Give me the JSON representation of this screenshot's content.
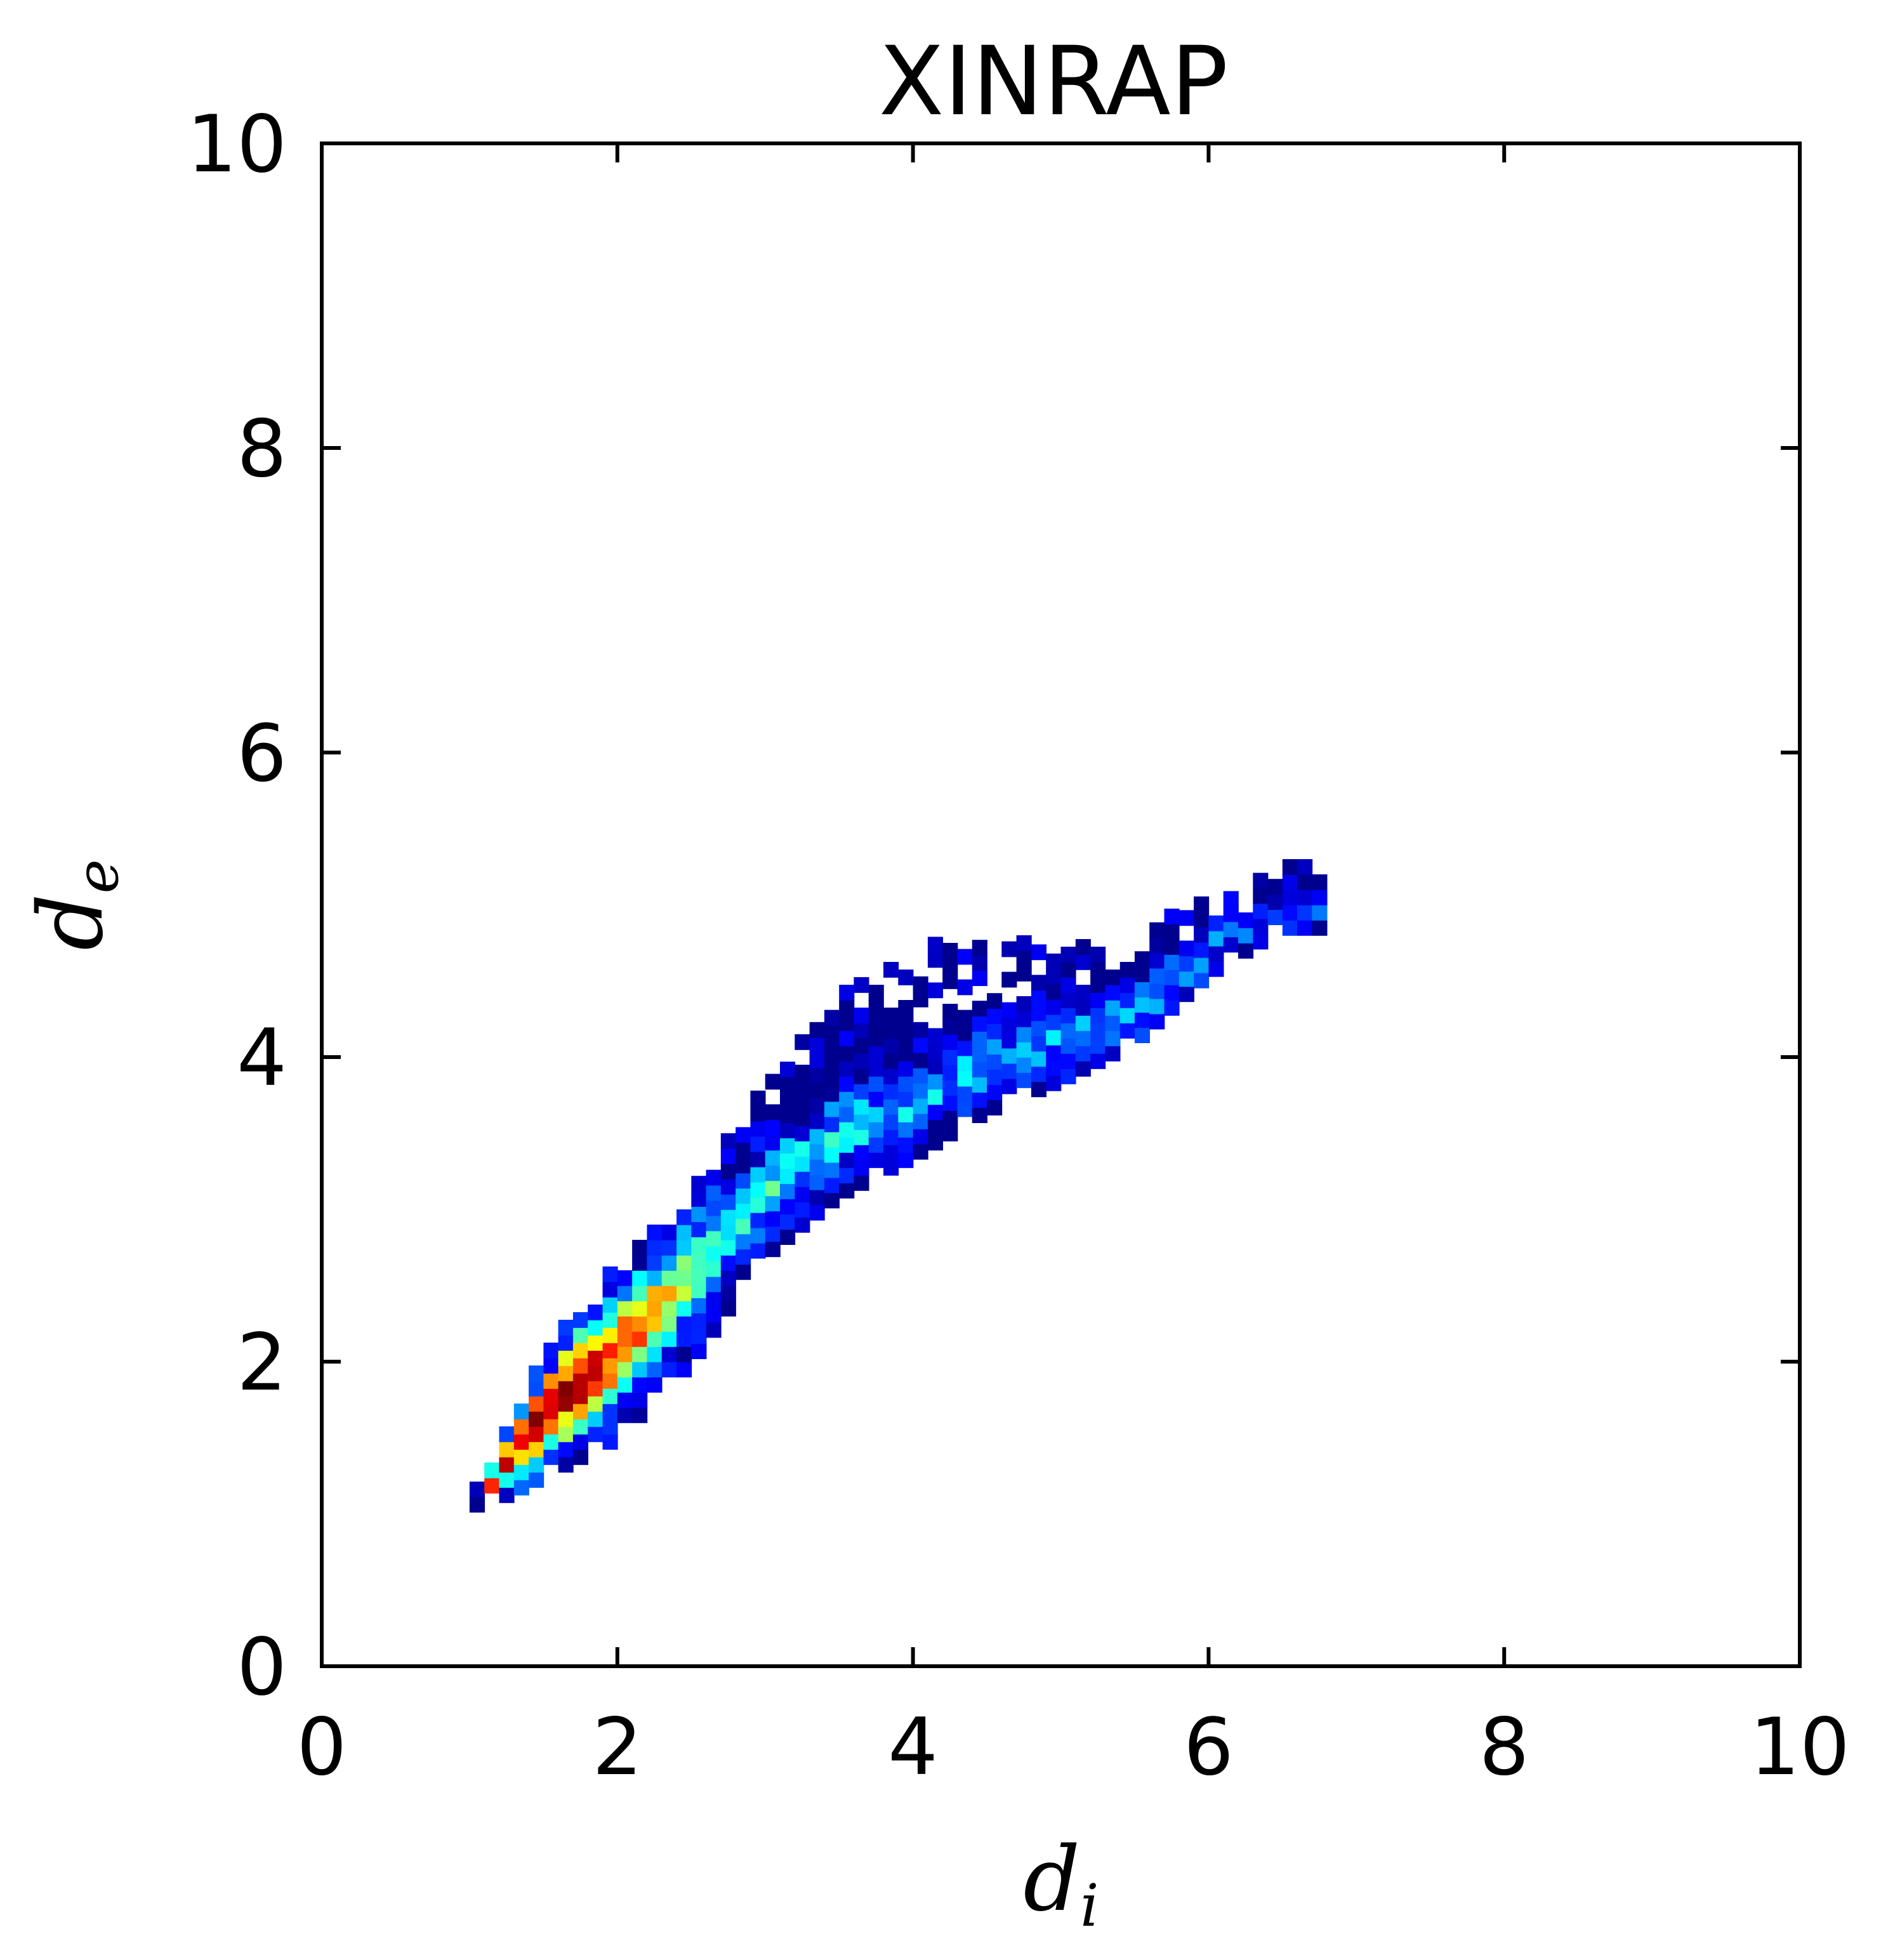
{
  "chart_data": {
    "type": "heatmap",
    "title": "XINRAP",
    "xlabel": {
      "main": "d",
      "sub": "i"
    },
    "ylabel": {
      "main": "d",
      "sub": "e"
    },
    "xlim": [
      0,
      10
    ],
    "ylim": [
      0,
      10
    ],
    "xticks": [
      "0",
      "2",
      "4",
      "6",
      "8",
      "10"
    ],
    "yticks": [
      "0",
      "2",
      "4",
      "6",
      "8",
      "10"
    ],
    "grid": false,
    "legend": "none",
    "colormap": [
      "#00008f",
      "#0000ff",
      "#0080ff",
      "#00ffff",
      "#80ff80",
      "#ffff00",
      "#ff8000",
      "#ff0000",
      "#800000"
    ],
    "bin_size": 0.1,
    "density_band": [
      {
        "di": 1.0,
        "de_low": 1.0,
        "de_high": 1.1,
        "peak": 0.75,
        "width": 0.07
      },
      {
        "di": 1.2,
        "de_low": 1.05,
        "de_high": 1.55,
        "peak": 1.3,
        "width": 0.15
      },
      {
        "di": 1.5,
        "de_low": 1.2,
        "de_high": 2.05,
        "peak": 1.65,
        "width": 0.28
      },
      {
        "di": 2.0,
        "de_low": 1.45,
        "de_high": 2.65,
        "peak": 2.1,
        "width": 0.32
      },
      {
        "di": 2.5,
        "de_low": 1.95,
        "de_high": 3.15,
        "peak": 2.6,
        "width": 0.3
      },
      {
        "di": 3.0,
        "de_low": 2.65,
        "de_high": 3.8,
        "peak": 3.15,
        "width": 0.24
      },
      {
        "di": 3.5,
        "de_low": 3.05,
        "de_high": 4.35,
        "peak": 3.5,
        "width": 0.22
      },
      {
        "di": 4.0,
        "de_low": 3.3,
        "de_high": 4.7,
        "peak": 3.7,
        "width": 0.22
      },
      {
        "di": 4.5,
        "de_low": 3.6,
        "de_high": 4.75,
        "peak": 3.95,
        "width": 0.2
      },
      {
        "di": 5.0,
        "de_low": 3.8,
        "de_high": 4.65,
        "peak": 4.1,
        "width": 0.2
      },
      {
        "di": 5.5,
        "de_low": 4.05,
        "de_high": 4.75,
        "peak": 4.3,
        "width": 0.2
      },
      {
        "di": 6.0,
        "de_low": 4.5,
        "de_high": 5.0,
        "peak": 4.7,
        "width": 0.18
      },
      {
        "di": 6.5,
        "de_low": 4.8,
        "de_high": 5.2,
        "peak": 5.0,
        "width": 0.15
      }
    ],
    "peak_region": {
      "di": 1.7,
      "de": 1.7,
      "max_density": 1.0
    }
  }
}
